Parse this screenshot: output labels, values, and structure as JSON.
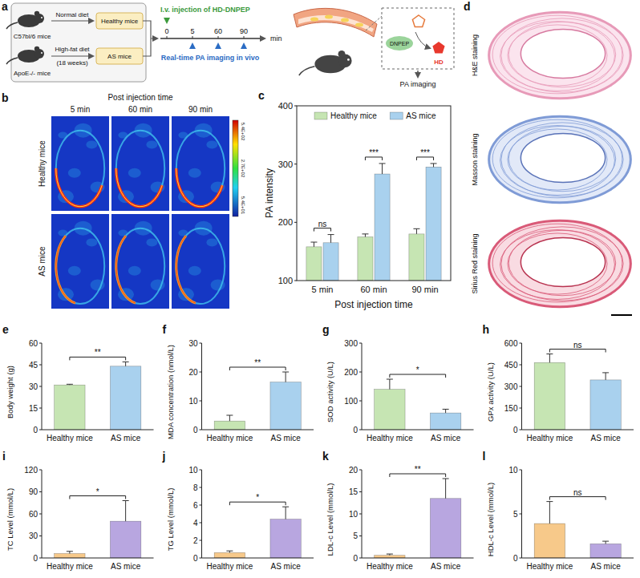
{
  "panel_a": {
    "letter": "a",
    "mouse_1": "C57bl/6 mice",
    "diet_1": "Normal diet",
    "group_1": "Healthy mice",
    "mouse_2": "ApoE-/- mice",
    "diet_2": "High-fat diet",
    "diet_2_duration": "(18 weeks)",
    "group_2": "AS mice",
    "injection": "I.v. injection of HD-DNPEP",
    "timeline_ticks": [
      0,
      5,
      60,
      90
    ],
    "timeline_unit": "min",
    "imaging": "Real-time PA imaging in vivo",
    "enzyme": "DNPEP",
    "product": "HD",
    "readout": "PA imaging"
  },
  "panel_b": {
    "letter": "b",
    "title": "Post injection time",
    "columns": [
      "5 min",
      "60 min",
      "90 min"
    ],
    "rows": [
      "Healthy mice",
      "AS mice"
    ],
    "colorbar_labels": [
      "5.4E+02",
      "2.7E+02",
      "5.4E+01"
    ]
  },
  "panel_d": {
    "letter": "d",
    "rows": [
      "H&E staining",
      "Masson staining",
      "Sirius Red staining"
    ]
  },
  "chart_data": [
    {
      "panel": "c",
      "type": "bar",
      "categories": [
        "5 min",
        "60 min",
        "90 min"
      ],
      "series": [
        {
          "name": "Healthy mice",
          "color": "#c6e5b3",
          "values": [
            158,
            175,
            180
          ],
          "errors": [
            8,
            5,
            9
          ]
        },
        {
          "name": "AS mice",
          "color": "#a9d1ee",
          "values": [
            165,
            283,
            295
          ],
          "errors": [
            14,
            18,
            6
          ]
        }
      ],
      "x_label": "Post injection time",
      "y_label": "PA intensity",
      "ylim": [
        100,
        400
      ],
      "yticks": [
        100,
        200,
        300,
        400
      ],
      "significance": [
        "ns",
        "***",
        "***"
      ],
      "legend": "top"
    },
    {
      "panel": "e",
      "type": "bar",
      "categories": [
        "Healthy mice",
        "AS mice"
      ],
      "values": [
        31,
        44
      ],
      "errors": [
        0.5,
        3
      ],
      "colors": [
        "#c6e5b3",
        "#a9d1ee"
      ],
      "y_label": "Body weight (g)",
      "ylim": [
        0,
        60
      ],
      "yticks": [
        0,
        15,
        30,
        45,
        60
      ],
      "significance": "**"
    },
    {
      "panel": "f",
      "type": "bar",
      "categories": [
        "Healthy mice",
        "AS mice"
      ],
      "values": [
        3,
        16.5
      ],
      "errors": [
        2,
        3.5
      ],
      "colors": [
        "#c6e5b3",
        "#a9d1ee"
      ],
      "y_label": "MDA concentration (nmol/L)",
      "ylim": [
        0,
        30
      ],
      "yticks": [
        0,
        10,
        20,
        30
      ],
      "significance": "**"
    },
    {
      "panel": "g",
      "type": "bar",
      "categories": [
        "Healthy mice",
        "AS mice"
      ],
      "values": [
        140,
        58
      ],
      "errors": [
        35,
        13
      ],
      "colors": [
        "#c6e5b3",
        "#a9d1ee"
      ],
      "y_label": "SOD activity (U/L)",
      "ylim": [
        0,
        300
      ],
      "yticks": [
        0,
        100,
        200,
        300
      ],
      "significance": "*"
    },
    {
      "panel": "h",
      "type": "bar",
      "categories": [
        "Healthy mice",
        "AS mice"
      ],
      "values": [
        465,
        345
      ],
      "errors": [
        60,
        50
      ],
      "colors": [
        "#c6e5b3",
        "#a9d1ee"
      ],
      "y_label": "GPx activity (U/L)",
      "ylim": [
        0,
        600
      ],
      "yticks": [
        0,
        150,
        300,
        450,
        600
      ],
      "significance": "ns"
    },
    {
      "panel": "i",
      "type": "bar",
      "categories": [
        "Healthy mice",
        "AS mice"
      ],
      "values": [
        6,
        50
      ],
      "errors": [
        3,
        28
      ],
      "colors": [
        "#f7c98a",
        "#b8a6e0"
      ],
      "y_label": "TC Level (mmol/L)",
      "ylim": [
        0,
        120
      ],
      "yticks": [
        0,
        30,
        60,
        90,
        120
      ],
      "significance": "*"
    },
    {
      "panel": "j",
      "type": "bar",
      "categories": [
        "Healthy mice",
        "AS mice"
      ],
      "values": [
        0.6,
        4.4
      ],
      "errors": [
        0.2,
        1.4
      ],
      "colors": [
        "#f7c98a",
        "#b8a6e0"
      ],
      "y_label": "TG Level (mmol/L)",
      "ylim": [
        0,
        10
      ],
      "yticks": [
        0,
        2,
        4,
        6,
        8,
        10
      ],
      "significance": "*"
    },
    {
      "panel": "k",
      "type": "bar",
      "categories": [
        "Healthy mice",
        "AS mice"
      ],
      "values": [
        0.6,
        13.5
      ],
      "errors": [
        0.3,
        4.5
      ],
      "colors": [
        "#f7c98a",
        "#b8a6e0"
      ],
      "y_label": "LDL-c Level (mmol/L)",
      "ylim": [
        0,
        20
      ],
      "yticks": [
        0,
        5,
        10,
        15,
        20
      ],
      "significance": "**"
    },
    {
      "panel": "l",
      "type": "bar",
      "categories": [
        "Healthy mice",
        "AS mice"
      ],
      "values": [
        3.9,
        1.6
      ],
      "errors": [
        2.5,
        0.3
      ],
      "colors": [
        "#f7c98a",
        "#b8a6e0"
      ],
      "y_label": "HDL-c Level (mmol/L)",
      "ylim": [
        0,
        10
      ],
      "yticks": [
        0,
        5,
        10
      ],
      "significance": "ns"
    }
  ]
}
